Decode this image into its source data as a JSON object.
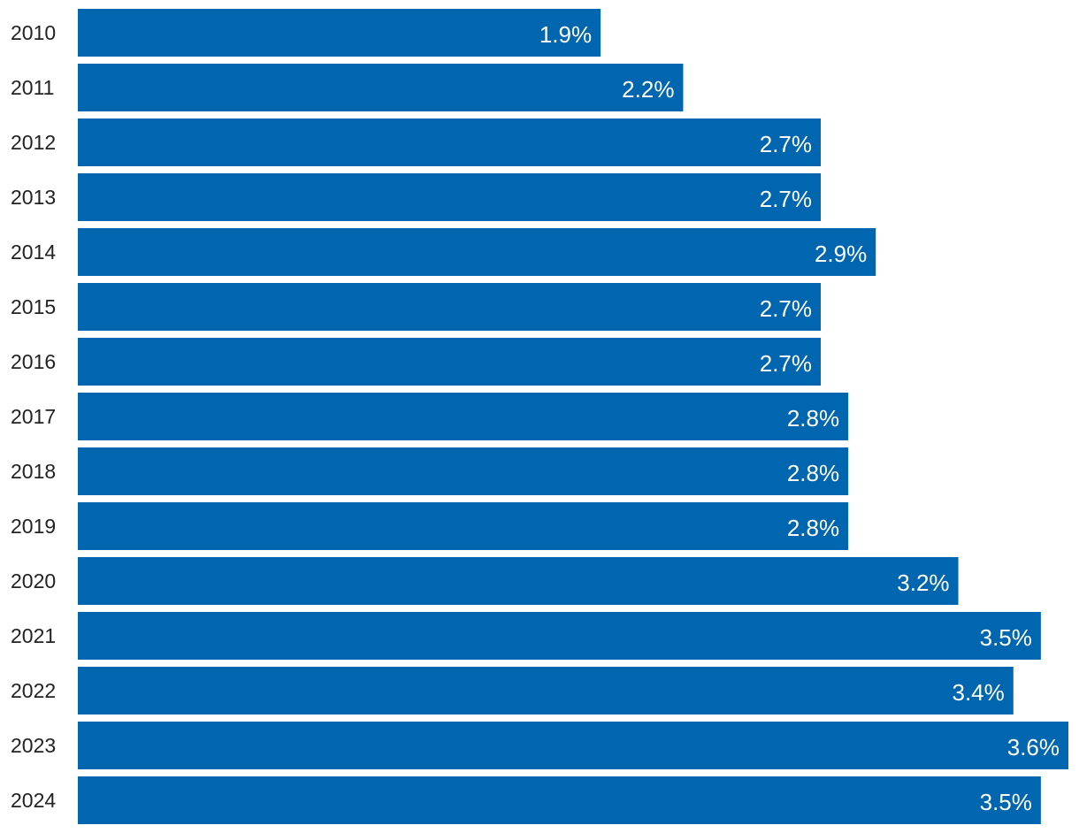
{
  "chart_data": {
    "type": "bar",
    "orientation": "horizontal",
    "categories": [
      "2010",
      "2011",
      "2012",
      "2013",
      "2014",
      "2015",
      "2016",
      "2017",
      "2018",
      "2019",
      "2020",
      "2021",
      "2022",
      "2023",
      "2024"
    ],
    "values": [
      1.9,
      2.2,
      2.7,
      2.7,
      2.9,
      2.7,
      2.7,
      2.8,
      2.8,
      2.8,
      3.2,
      3.5,
      3.4,
      3.6,
      3.5
    ],
    "value_labels": [
      "1.9%",
      "2.2%",
      "2.7%",
      "2.7%",
      "2.9%",
      "2.7%",
      "2.7%",
      "2.8%",
      "2.8%",
      "2.8%",
      "3.2%",
      "3.5%",
      "3.4%",
      "3.6%",
      "3.5%"
    ],
    "value_unit": "%",
    "title": "",
    "xlabel": "",
    "ylabel": "",
    "xlim": [
      0,
      3.6
    ],
    "grid": false,
    "legend": "none",
    "bar_color": "#0066b0",
    "label_color": "#ffffff",
    "category_label_color": "#222222"
  }
}
